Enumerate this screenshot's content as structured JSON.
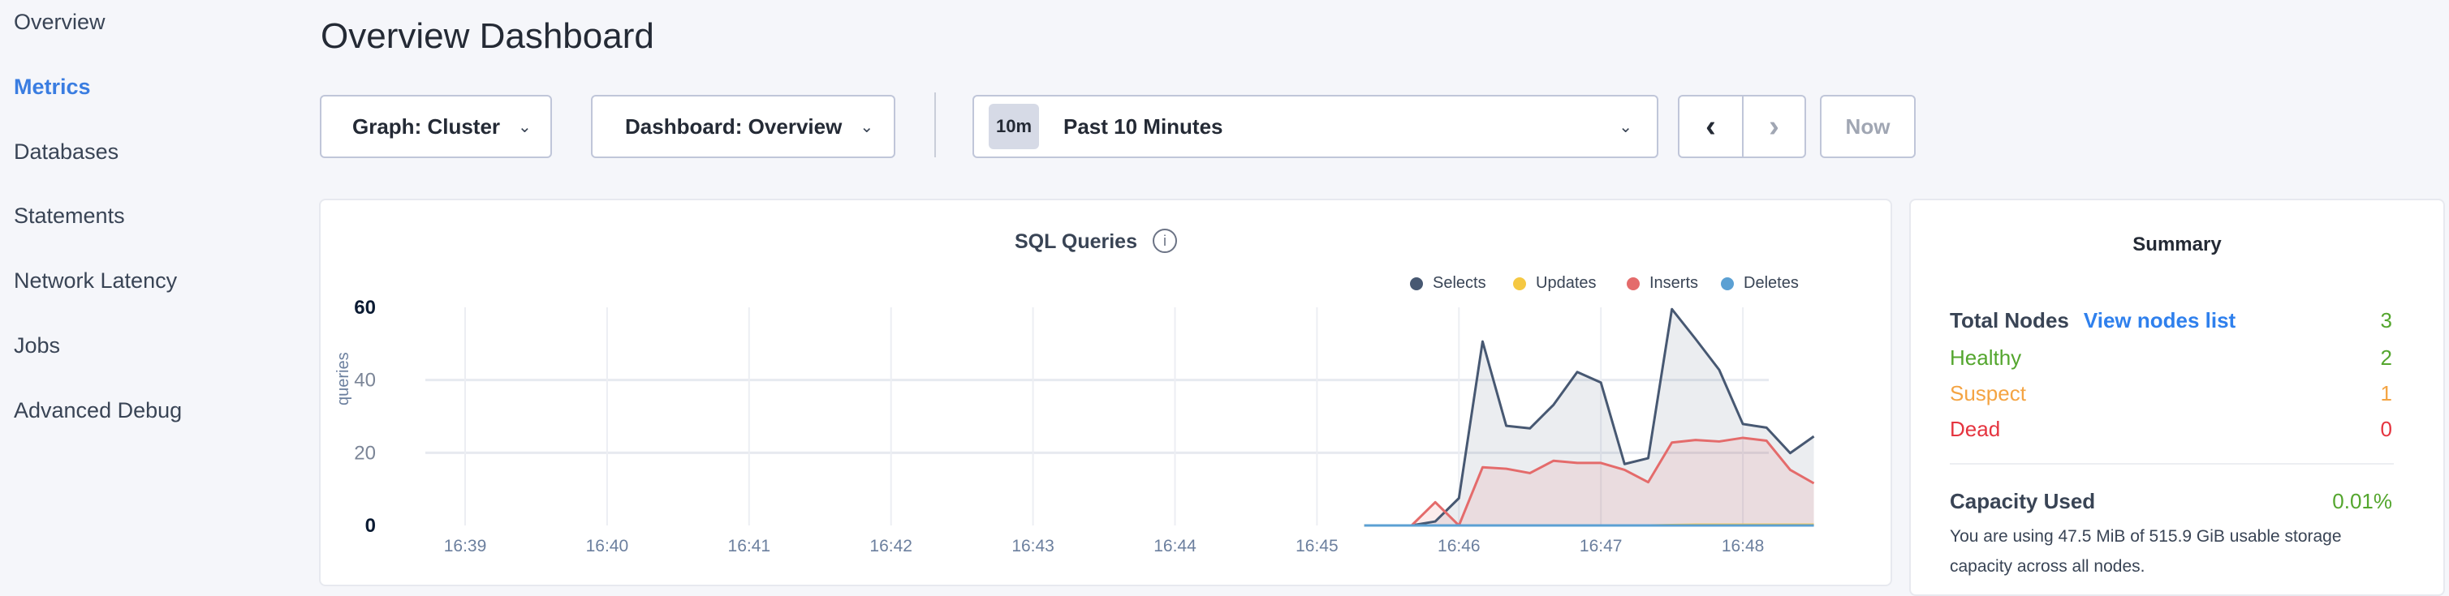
{
  "sidebar": {
    "items": [
      {
        "label": "Overview"
      },
      {
        "label": "Metrics",
        "active": true
      },
      {
        "label": "Databases"
      },
      {
        "label": "Statements"
      },
      {
        "label": "Network Latency"
      },
      {
        "label": "Jobs"
      },
      {
        "label": "Advanced Debug"
      }
    ]
  },
  "header": {
    "title": "Overview Dashboard"
  },
  "toolbar": {
    "graph_select": "Graph: Cluster",
    "dashboard_select": "Dashboard: Overview",
    "time_badge": "10m",
    "time_range": "Past 10 Minutes",
    "prev_icon": "chevron-left-icon",
    "next_icon": "chevron-right-icon",
    "now_label": "Now"
  },
  "chart_card": {
    "title": "SQL Queries",
    "info_icon": "info-icon"
  },
  "chart_data": {
    "type": "area",
    "title": "SQL Queries",
    "ylabel": "queries",
    "xlabel": "",
    "ylim": [
      0,
      60
    ],
    "yticks": [
      "0",
      "20",
      "40",
      "60"
    ],
    "xticks": [
      "16:39",
      "16:40",
      "16:41",
      "16:42",
      "16:43",
      "16:44",
      "16:45",
      "16:46",
      "16:47",
      "16:48"
    ],
    "grid": true,
    "legend": "top-right",
    "x": [
      "16:45:20",
      "16:45:30",
      "16:45:40",
      "16:45:50",
      "16:46:00",
      "16:46:10",
      "16:46:20",
      "16:46:30",
      "16:46:40",
      "16:46:50",
      "16:47:00",
      "16:47:10",
      "16:47:20",
      "16:47:30",
      "16:47:40",
      "16:47:50",
      "16:48:00",
      "16:48:10",
      "16:48:20",
      "16:48:30"
    ],
    "series": [
      {
        "name": "Selects",
        "color": "#475872",
        "values": [
          0,
          0,
          0,
          1.1,
          7.5,
          50.6,
          27.4,
          26.7,
          33.2,
          42.2,
          39.3,
          16.9,
          18.5,
          59.5,
          51.3,
          42.8,
          27.9,
          26.9,
          19.9,
          24.5
        ]
      },
      {
        "name": "Updates",
        "color": "#f5c842",
        "values": [
          0,
          0,
          0,
          0,
          0,
          0,
          0,
          0,
          0,
          0,
          0,
          0,
          0,
          0.1,
          0.2,
          0.2,
          0.2,
          0.2,
          0.2,
          0.2
        ]
      },
      {
        "name": "Inserts",
        "color": "#e46b6b",
        "values": [
          0,
          0,
          0,
          6.4,
          0,
          16,
          15.6,
          14.4,
          17.8,
          17.2,
          17.2,
          15.3,
          11.9,
          22.8,
          23.5,
          23.1,
          24.1,
          23.3,
          15.3,
          11.6
        ]
      },
      {
        "name": "Deletes",
        "color": "#5ba0d3",
        "values": [
          0,
          0,
          0,
          0,
          0,
          0,
          0,
          0,
          0,
          0,
          0,
          0,
          0,
          0,
          0,
          0,
          0,
          0,
          0,
          0
        ]
      }
    ]
  },
  "summary": {
    "title": "Summary",
    "total_nodes_label": "Total Nodes",
    "view_nodes_link": "View nodes list",
    "total_nodes": "3",
    "healthy_label": "Healthy",
    "healthy": "2",
    "suspect_label": "Suspect",
    "suspect": "1",
    "dead_label": "Dead",
    "dead": "0",
    "capacity_label": "Capacity Used",
    "capacity_value": "0.01%",
    "capacity_text": "You are using 47.5 MiB of 515.9 GiB usable storage capacity across all nodes.",
    "colors": {
      "healthy": "#54a62e",
      "suspect": "#f4a443",
      "dead": "#e5343f",
      "link": "#2f80ed"
    }
  }
}
